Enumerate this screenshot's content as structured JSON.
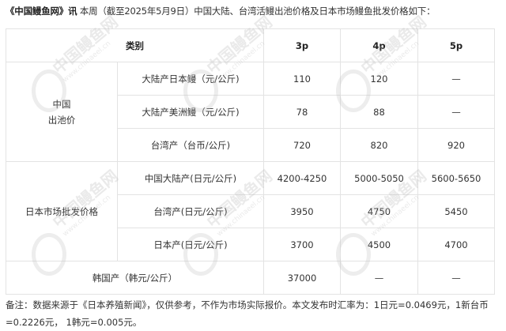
{
  "intro": {
    "source": "《中国鳗鱼网》讯",
    "text": "本周（截至2025年5月9日）中国大陆、台湾活鳗出池价格及日本市场鳗鱼批发价格如下："
  },
  "table": {
    "headers": [
      "类别",
      "3p",
      "4p",
      "5p"
    ],
    "groups": [
      {
        "label_line1": "中国",
        "label_line2": "出池价",
        "rows": [
          {
            "label": "大陆产日本鳗（元/公斤)",
            "values": [
              "110",
              "120",
              "—"
            ]
          },
          {
            "label": "大陆产美洲鳗（元/公斤)",
            "values": [
              "78",
              "88",
              "—"
            ]
          },
          {
            "label": "台湾产（台币/公斤)",
            "values": [
              "720",
              "820",
              "920"
            ]
          }
        ]
      },
      {
        "label_line1": "日本市场批发价格",
        "rows": [
          {
            "label": "中国大陆产(日元/公斤)",
            "values": [
              "4200-4250",
              "5000-5050",
              "5600-5650"
            ]
          },
          {
            "label": "台湾产(日元/公斤)",
            "values": [
              "3950",
              "4750",
              "5450"
            ]
          },
          {
            "label": "日本产(日元/公斤)",
            "values": [
              "3700",
              "4500",
              "4700"
            ]
          }
        ]
      }
    ],
    "korea": {
      "label": "韩国产（韩元/公斤）",
      "values": [
        "37000",
        "—",
        "—"
      ]
    }
  },
  "note": {
    "line1": "备注：数据来源于《日本养殖新闻》，仅供参考，不作为市场实际报价。本文发布时汇率为：1日元=0.0469元，1新台币",
    "line2": "=0.2226元， 1韩元=0.005元。"
  },
  "watermark": {
    "name": "中国鳗鱼网",
    "url": "www.chinaeel.cn"
  }
}
